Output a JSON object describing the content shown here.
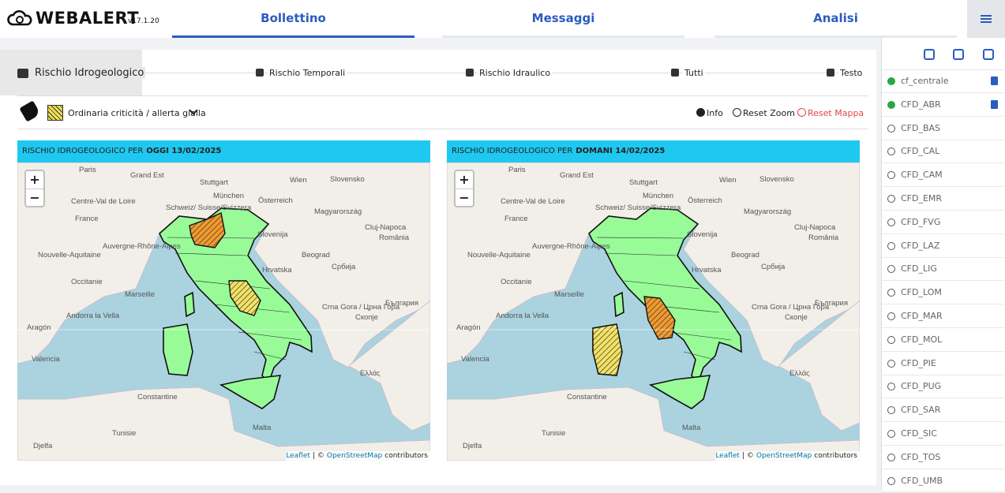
{
  "header": {
    "logo": "WEBALERT",
    "version": "v17.1.20",
    "tabs": [
      "Bollettino",
      "Messaggi",
      "Analisi"
    ]
  },
  "risk_tabs": [
    "Rischio Idrogeologico",
    "Rischio Temporali",
    "Rischio Idraulico",
    "Tutti",
    "Testo"
  ],
  "toolbar": {
    "legend": "Ordinaria criticità / allerta gialla",
    "buttons": [
      "Info",
      "Reset Zoom",
      "Reset Mappa"
    ]
  },
  "maps": [
    {
      "title_prefix": "RISCHIO IDROGEOLOGICO PER",
      "title_day": "OGGI 13/02/2025"
    },
    {
      "title_prefix": "RISCHIO IDROGEOLOGICO PER",
      "title_day": "DOMANI 14/02/2025"
    }
  ],
  "zoom": [
    "+",
    "−"
  ],
  "map_labels": [
    "Paris",
    "Stuttgart",
    "München",
    "Slovensko",
    "Grand Est",
    "Österreich",
    "Wien",
    "Centre-Val de Loire",
    "France",
    "Schweiz/ Suisse/Svizzera",
    "Magyarország",
    "Cluj-Napoca",
    "România",
    "Auvergne-Rhône-Alpes",
    "Slovenija",
    "Beograd",
    "Србија",
    "Nouvelle-Aquitaine",
    "Hrvatska",
    "Occitanie",
    "Marseille",
    "Crna Gora / Црна Гора",
    "България",
    "Andorra la Vella",
    "Скопје",
    "Aragón",
    "Valencia",
    "Ελλάς",
    "Constantine",
    "Tunisie",
    "Djelfa",
    "Malta"
  ],
  "attribution": [
    "Leaflet",
    "| ©",
    "OpenStreetMap",
    "contributors"
  ],
  "sidebar": {
    "items": [
      {
        "label": "cf_centrale",
        "checked": true,
        "pdf": true
      },
      {
        "label": "CFD_ABR",
        "checked": true,
        "pdf": true
      },
      {
        "label": "CFD_BAS",
        "checked": false,
        "pdf": false
      },
      {
        "label": "CFD_CAL",
        "checked": false,
        "pdf": false
      },
      {
        "label": "CFD_CAM",
        "checked": false,
        "pdf": false
      },
      {
        "label": "CFD_EMR",
        "checked": false,
        "pdf": false
      },
      {
        "label": "CFD_FVG",
        "checked": false,
        "pdf": false
      },
      {
        "label": "CFD_LAZ",
        "checked": false,
        "pdf": false
      },
      {
        "label": "CFD_LIG",
        "checked": false,
        "pdf": false
      },
      {
        "label": "CFD_LOM",
        "checked": false,
        "pdf": false
      },
      {
        "label": "CFD_MAR",
        "checked": false,
        "pdf": false
      },
      {
        "label": "CFD_MOL",
        "checked": false,
        "pdf": false
      },
      {
        "label": "CFD_PIE",
        "checked": false,
        "pdf": false
      },
      {
        "label": "CFD_PUG",
        "checked": false,
        "pdf": false
      },
      {
        "label": "CFD_SAR",
        "checked": false,
        "pdf": false
      },
      {
        "label": "CFD_SIC",
        "checked": false,
        "pdf": false
      },
      {
        "label": "CFD_TOS",
        "checked": false,
        "pdf": false
      },
      {
        "label": "CFD_UMB",
        "checked": false,
        "pdf": false
      }
    ]
  }
}
